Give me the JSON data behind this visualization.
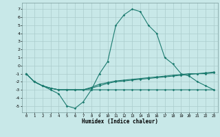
{
  "xlabel": "Humidex (Indice chaleur)",
  "x": [
    0,
    1,
    2,
    3,
    4,
    5,
    6,
    7,
    8,
    9,
    10,
    11,
    12,
    13,
    14,
    15,
    16,
    17,
    18,
    19,
    20,
    21,
    22,
    23
  ],
  "curve1": [
    -1,
    -2,
    -2.5,
    -3,
    -3.5,
    -5,
    -5.3,
    -4.5,
    -3,
    -1,
    0.5,
    5,
    6.3,
    7,
    6.7,
    5.0,
    4.0,
    1.0,
    0.2,
    -1.0,
    -1.3,
    -2.0,
    -2.5,
    -3
  ],
  "curve2": [
    -1,
    -2,
    -2.5,
    -2.8,
    -3.0,
    -3.0,
    -3.0,
    -3.0,
    -2.8,
    -2.5,
    -2.2,
    -2.0,
    -1.9,
    -1.8,
    -1.7,
    -1.6,
    -1.5,
    -1.4,
    -1.3,
    -1.2,
    -1.1,
    -1.0,
    -1.0,
    -0.9
  ],
  "curve3": [
    -1,
    -2,
    -2.5,
    -2.8,
    -3.0,
    -3.0,
    -3.0,
    -3.0,
    -3.0,
    -3.0,
    -3.0,
    -3.0,
    -3.0,
    -3.0,
    -3.0,
    -3.0,
    -3.0,
    -3.0,
    -3.0,
    -3.0,
    -3.0,
    -3.0,
    -3.0,
    -3.0
  ],
  "curve4": [
    -1,
    -2,
    -2.5,
    -2.8,
    -3.0,
    -3.0,
    -3.0,
    -3.0,
    -2.7,
    -2.3,
    -2.1,
    -1.9,
    -1.8,
    -1.7,
    -1.6,
    -1.5,
    -1.4,
    -1.3,
    -1.2,
    -1.1,
    -1.0,
    -1.0,
    -0.9,
    -0.8
  ],
  "line_color": "#1a7a6e",
  "bg_color": "#c8e8e8",
  "grid_color": "#aacccc",
  "ylim": [
    -5.8,
    7.8
  ],
  "xlim": [
    -0.5,
    23.5
  ],
  "yticks": [
    -5,
    -4,
    -3,
    -2,
    -1,
    0,
    1,
    2,
    3,
    4,
    5,
    6,
    7
  ],
  "xticks": [
    0,
    1,
    2,
    3,
    4,
    5,
    6,
    7,
    8,
    9,
    10,
    11,
    12,
    13,
    14,
    15,
    16,
    17,
    18,
    19,
    20,
    21,
    22,
    23
  ]
}
